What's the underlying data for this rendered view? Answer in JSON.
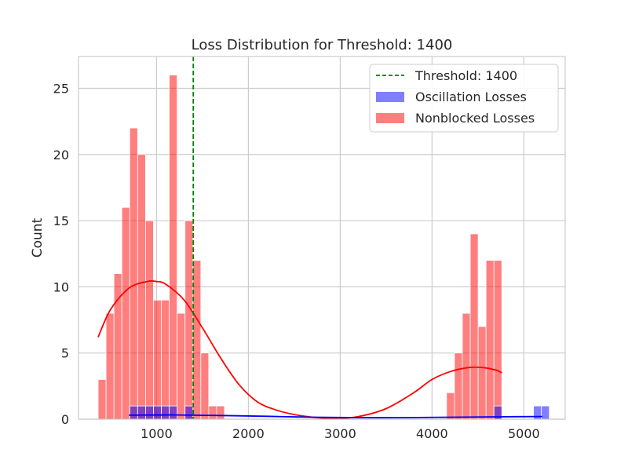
{
  "chart_data": {
    "type": "bar",
    "title": "Loss Distribution for Threshold: 1400",
    "xlabel": "",
    "ylabel": "Count",
    "xlim": [
      150,
      5450
    ],
    "ylim": [
      0,
      27.4
    ],
    "xticks": [
      1000,
      2000,
      3000,
      4000,
      5000
    ],
    "yticks": [
      0,
      5,
      10,
      15,
      20,
      25
    ],
    "grid": true,
    "legend_position": "top-right",
    "bin_width": 86,
    "threshold": {
      "label": "Threshold: 1400",
      "value": 1400,
      "color": "#008000"
    },
    "series": [
      {
        "name": "Nonblocked Losses",
        "color": "#ff0000",
        "bin_starts": [
          364,
          450,
          536,
          622,
          708,
          794,
          880,
          966,
          1052,
          1138,
          1224,
          1310,
          1396,
          1482,
          1568,
          1654,
          4158,
          4244,
          4330,
          4416,
          4502,
          4588,
          4674
        ],
        "counts": [
          3,
          8,
          11,
          16,
          22,
          20,
          15,
          9,
          9,
          26,
          8,
          15,
          12,
          5,
          1,
          1,
          2,
          5,
          8,
          14,
          7,
          12,
          12
        ],
        "kde": {
          "x": [
            364,
            500,
            700,
            900,
            1000,
            1100,
            1300,
            1500,
            1700,
            1900,
            2100,
            2300,
            2500,
            2700,
            2950,
            3200,
            3500,
            3800,
            4000,
            4200,
            4400,
            4550,
            4700,
            4760
          ],
          "y": [
            6.2,
            8.3,
            9.9,
            10.4,
            10.4,
            10.2,
            9.0,
            6.9,
            4.6,
            2.6,
            1.3,
            0.7,
            0.35,
            0.15,
            0.05,
            0.2,
            0.8,
            2.0,
            3.0,
            3.6,
            3.9,
            3.9,
            3.7,
            3.5
          ]
        }
      },
      {
        "name": "Oscillation Losses",
        "color": "#0000ff",
        "bin_starts": [
          708,
          794,
          880,
          966,
          1052,
          1138,
          1310,
          4674,
          5105,
          5191
        ],
        "counts": [
          1,
          1,
          1,
          1,
          1,
          1,
          1,
          1,
          1,
          1
        ],
        "kde": {
          "x": [
            700,
            1200,
            1700,
            2200,
            2700,
            3200,
            3700,
            4200,
            4700,
            5200
          ],
          "y": [
            0.3,
            0.32,
            0.28,
            0.22,
            0.15,
            0.12,
            0.12,
            0.15,
            0.18,
            0.2
          ]
        }
      }
    ]
  }
}
